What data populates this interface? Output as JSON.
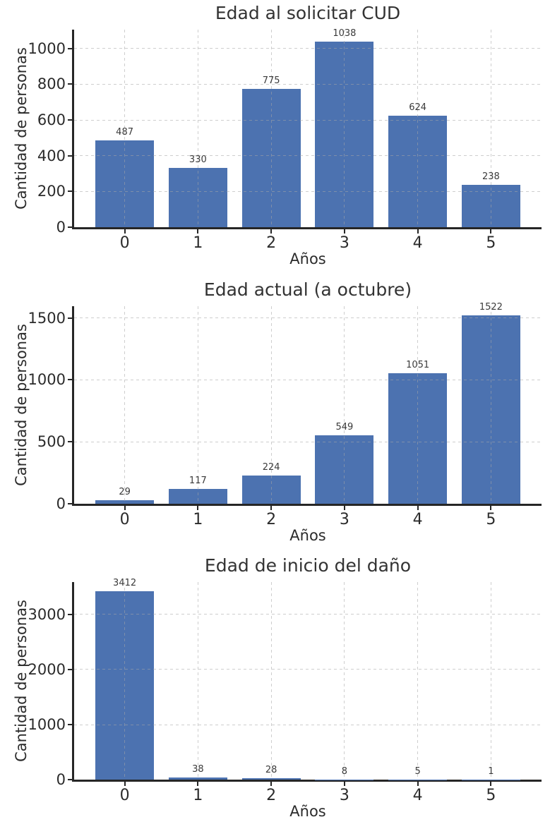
{
  "figure": {
    "background": "#ffffff",
    "bar_color": "#4C72B0",
    "axis_color": "#262626",
    "grid_color": "rgba(165,165,165,0.55)",
    "title_color": "#333333",
    "tick_color": "#2b2b2b",
    "value_label_color": "#3a3a3a"
  },
  "chart_data": [
    {
      "type": "bar",
      "title": "Edad al solicitar CUD",
      "xlabel": "Años",
      "ylabel": "Cantidad de personas",
      "categories": [
        "0",
        "1",
        "2",
        "3",
        "4",
        "5"
      ],
      "values": [
        487,
        330,
        775,
        1038,
        624,
        238
      ],
      "value_labels": [
        "487",
        "330",
        "775",
        "1038",
        "624",
        "238"
      ],
      "yticks": [
        0,
        200,
        400,
        600,
        800,
        1000
      ],
      "ylim": [
        0,
        1106
      ],
      "xlim": [
        -0.69,
        5.69
      ],
      "bar_width": 0.8,
      "grid": true,
      "grid_style": "dashed"
    },
    {
      "type": "bar",
      "title": "Edad actual (a octubre)",
      "xlabel": "Años",
      "ylabel": "Cantidad de personas",
      "categories": [
        "0",
        "1",
        "2",
        "3",
        "4",
        "5"
      ],
      "values": [
        29,
        117,
        224,
        549,
        1051,
        1522
      ],
      "value_labels": [
        "29",
        "117",
        "224",
        "549",
        "1051",
        "1522"
      ],
      "yticks": [
        0,
        500,
        1000,
        1500
      ],
      "ylim": [
        0,
        1597
      ],
      "xlim": [
        -0.69,
        5.69
      ],
      "bar_width": 0.8,
      "grid": true,
      "grid_style": "dashed"
    },
    {
      "type": "bar",
      "title": "Edad de inicio del daño",
      "xlabel": "Años",
      "ylabel": "Cantidad de personas",
      "categories": [
        "0",
        "1",
        "2",
        "3",
        "4",
        "5"
      ],
      "values": [
        3412,
        38,
        28,
        8,
        5,
        1
      ],
      "value_labels": [
        "3412",
        "38",
        "28",
        "8",
        "5",
        "1"
      ],
      "yticks": [
        0,
        1000,
        2000,
        3000
      ],
      "ylim": [
        0,
        3579
      ],
      "xlim": [
        -0.69,
        5.69
      ],
      "bar_width": 0.8,
      "grid": true,
      "grid_style": "dashed"
    }
  ]
}
